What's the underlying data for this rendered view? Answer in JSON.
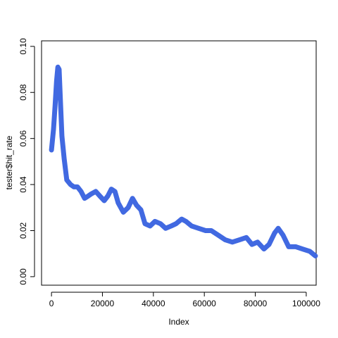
{
  "chart_data": {
    "type": "line",
    "xlabel": "Index",
    "ylabel": "tester$hit_rate",
    "x": [
      0,
      800,
      1400,
      2000,
      2500,
      3000,
      3600,
      4100,
      5000,
      6000,
      7500,
      8800,
      10200,
      11600,
      13000,
      14400,
      15700,
      17400,
      19000,
      20700,
      22100,
      23500,
      24900,
      26200,
      28200,
      30100,
      31800,
      33400,
      35100,
      36700,
      38700,
      40600,
      42800,
      44800,
      47000,
      48900,
      51100,
      52800,
      55000,
      57700,
      60500,
      62700,
      65500,
      68200,
      71000,
      73800,
      76500,
      78700,
      80900,
      83400,
      85400,
      87600,
      89000,
      90900,
      93100,
      95900,
      98600,
      101400,
      103600
    ],
    "series": [
      {
        "color": "#4169e1",
        "values": [
          0.055,
          0.064,
          0.074,
          0.085,
          0.091,
          0.09,
          0.074,
          0.061,
          0.051,
          0.042,
          0.04,
          0.039,
          0.039,
          0.037,
          0.034,
          0.035,
          0.036,
          0.037,
          0.035,
          0.033,
          0.035,
          0.038,
          0.037,
          0.032,
          0.028,
          0.03,
          0.034,
          0.031,
          0.029,
          0.023,
          0.022,
          0.024,
          0.023,
          0.021,
          0.022,
          0.023,
          0.025,
          0.024,
          0.022,
          0.021,
          0.02,
          0.02,
          0.018,
          0.016,
          0.015,
          0.016,
          0.017,
          0.014,
          0.015,
          0.012,
          0.014,
          0.019,
          0.021,
          0.018,
          0.013,
          0.013,
          0.012,
          0.011,
          0.009
        ]
      }
    ],
    "xlim": [
      -3900,
      103900
    ],
    "xticks": [
      0,
      20000,
      40000,
      60000,
      80000,
      100000
    ],
    "ylim": [
      -0.0037,
      0.1024
    ],
    "yticks": [
      {
        "value": 0,
        "label": "0.00"
      },
      0.02,
      0.04,
      0.06,
      0.08,
      {
        "value": 0.1,
        "label": "0.10"
      }
    ]
  }
}
